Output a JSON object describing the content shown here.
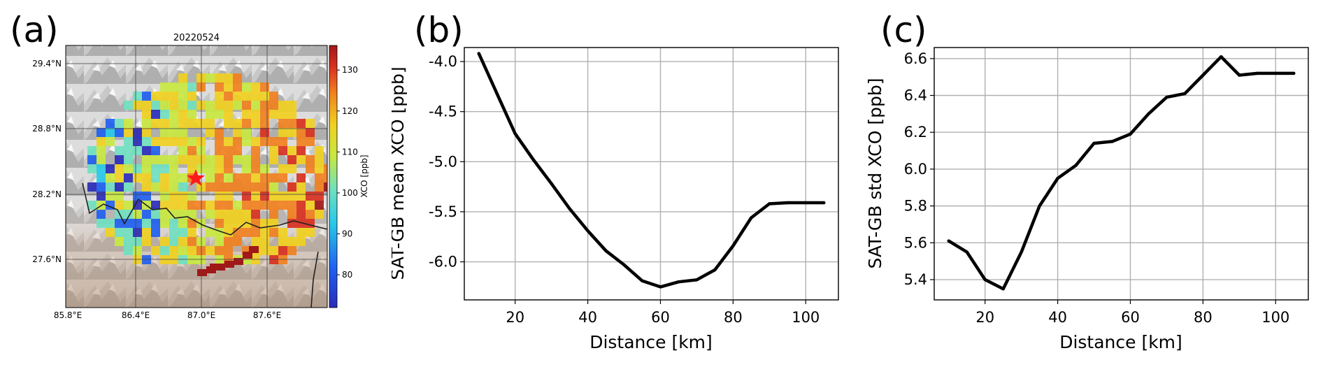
{
  "panels": {
    "a": "(a)",
    "b": "(b)",
    "c": "(c)"
  },
  "chart_data": [
    {
      "type": "heatmap",
      "title": "20220524",
      "x_ticks": [
        "85.8°E",
        "86.4°E",
        "87.0°E",
        "87.6°E"
      ],
      "y_ticks": [
        "29.4°N",
        "28.8°N",
        "28.2°N",
        "27.6°N"
      ],
      "colorbar": {
        "label": "XCO [ppb]",
        "ticks": [
          80,
          90,
          100,
          110,
          120,
          130
        ],
        "range": [
          72,
          136
        ]
      },
      "marker": "red-star"
    },
    {
      "type": "line",
      "xlabel": "Distance  [km]",
      "ylabel": "SAT-GB mean XCO [ppb]",
      "xlim": [
        6,
        109
      ],
      "ylim": [
        -6.38,
        -3.86
      ],
      "x_ticks": [
        20,
        40,
        60,
        80,
        100
      ],
      "y_ticks": [
        -4.0,
        -4.5,
        -5.0,
        -5.5,
        -6.0
      ],
      "grid": true,
      "x": [
        10,
        15,
        20,
        25,
        30,
        35,
        40,
        45,
        50,
        55,
        60,
        65,
        70,
        75,
        80,
        85,
        90,
        95,
        100,
        105
      ],
      "y": [
        -3.92,
        -4.32,
        -4.72,
        -4.98,
        -5.22,
        -5.47,
        -5.69,
        -5.89,
        -6.03,
        -6.19,
        -6.25,
        -6.2,
        -6.18,
        -6.08,
        -5.84,
        -5.56,
        -5.42,
        -5.41,
        -5.41,
        -5.41
      ],
      "color": "#000000"
    },
    {
      "type": "line",
      "xlabel": "Distance  [km]",
      "ylabel": "SAT-GB std XCO [ppb]",
      "xlim": [
        6,
        109
      ],
      "ylim": [
        5.29,
        6.66
      ],
      "x_ticks": [
        20,
        40,
        60,
        80,
        100
      ],
      "y_ticks": [
        5.4,
        5.6,
        5.8,
        6.0,
        6.2,
        6.4,
        6.6
      ],
      "grid": true,
      "x": [
        10,
        15,
        20,
        25,
        30,
        35,
        40,
        45,
        50,
        55,
        60,
        65,
        70,
        75,
        80,
        85,
        90,
        95,
        100,
        105
      ],
      "y": [
        5.61,
        5.55,
        5.4,
        5.35,
        5.55,
        5.8,
        5.95,
        6.02,
        6.14,
        6.15,
        6.19,
        6.3,
        6.39,
        6.41,
        6.51,
        6.61,
        6.51,
        6.52,
        6.52,
        6.52
      ],
      "color": "#000000"
    }
  ]
}
